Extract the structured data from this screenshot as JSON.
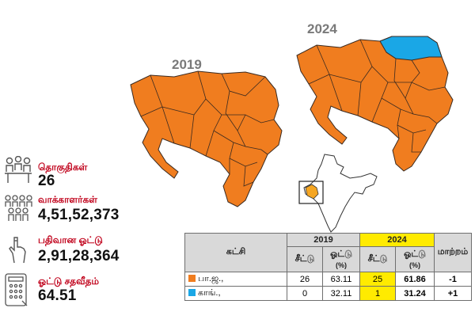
{
  "maps": {
    "left_year": "2019",
    "right_year": "2024",
    "colors": {
      "bjp": "#f07d1f",
      "congress": "#1aa7e6",
      "border": "#3a2a20"
    }
  },
  "stats": [
    {
      "icon": "people-at-table-icon",
      "label": "தொகுதிகள்",
      "value": "26"
    },
    {
      "icon": "crowd-icon",
      "label": "வாக்காளர்கள்",
      "value": "4,51,52,373"
    },
    {
      "icon": "ink-finger-icon",
      "label": "பதிவான ஓட்டு",
      "value": "2,91,28,364"
    },
    {
      "icon": "voting-machine-icon",
      "label": "ஓட்டு சதவீதம்",
      "value": "64.51"
    }
  ],
  "table": {
    "party_header": "கட்சி",
    "year_2019": "2019",
    "year_2024": "2024",
    "seats_header": "சீட்டு",
    "votes_header": "ஓட்டு",
    "votes_unit": "(%)",
    "change_header": "மாற்றம்",
    "rows": [
      {
        "party": "பா.ஜ.,",
        "color": "#f07d1f",
        "seats_2019": "26",
        "votes_2019": "63.11",
        "seats_2024": "25",
        "votes_2024": "61.86",
        "change": "-1"
      },
      {
        "party": "காங்.,",
        "color": "#1aa7e6",
        "seats_2019": "0",
        "votes_2019": "32.11",
        "seats_2024": "1",
        "votes_2024": "31.24",
        "change": "+1"
      }
    ]
  }
}
